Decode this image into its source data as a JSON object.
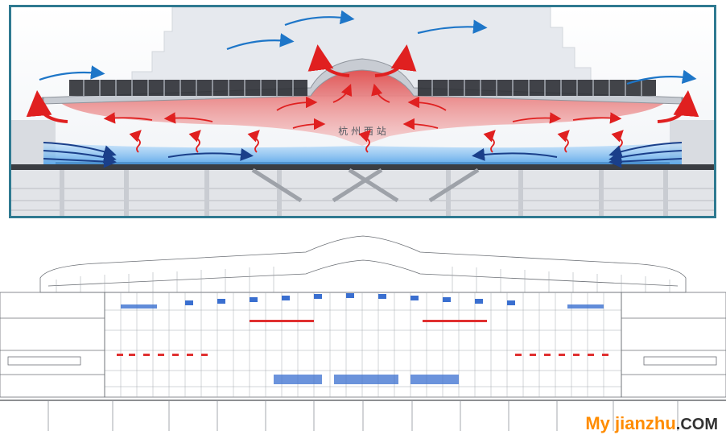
{
  "diagram": {
    "sign_text": "杭 州 西 站"
  },
  "watermark": {
    "main": "My jianzhu",
    "suffix": ".COM"
  },
  "colors": {
    "frame": "#2f7a91",
    "warm_air": "#e02020",
    "cool_air": "#3a8fe0",
    "cool_air_dark": "#1a3f8a",
    "wind": "#1e76c8",
    "watermark": "#ff8c00"
  }
}
